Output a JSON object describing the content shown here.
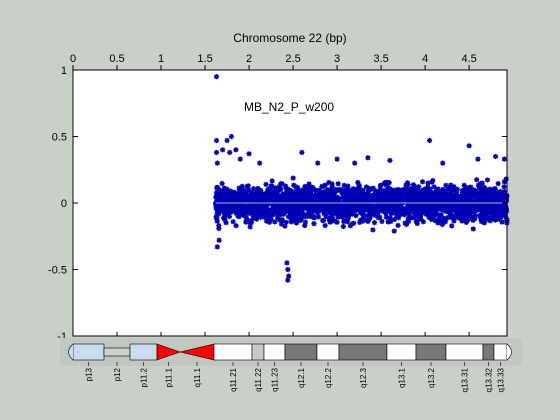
{
  "chart_data": {
    "type": "scatter",
    "title": "Chromosome 22 (bp)",
    "annotation": "MB_N2_P_w200",
    "x_exponent": "",
    "xlim": [
      0,
      4.93
    ],
    "ylim": [
      -1,
      1
    ],
    "xticks": [
      0,
      0.5,
      1,
      1.5,
      2,
      2.5,
      3,
      3.5,
      4,
      4.5
    ],
    "xtick_labels": [
      "0",
      "0.5",
      "1",
      "1.5",
      "2",
      "2.5",
      "3",
      "3.5",
      "4",
      "4.5"
    ],
    "yticks": [
      1,
      0.5,
      0,
      -0.5,
      -1
    ],
    "ytick_labels": [
      "1",
      "0.5",
      "0",
      "-0.5",
      "-1"
    ],
    "grid": false,
    "zero_line": 0,
    "colors": {
      "points": "#0000b4",
      "zero_line": "#a8b4c8",
      "figure_bg": "#c8d0c8",
      "axes_bg": "#ffffff"
    },
    "scatter_summary": {
      "x_start": 1.62,
      "x_end": 4.93,
      "typical_y_range": [
        -0.3,
        0.3
      ],
      "n_points_estimate": 2400
    },
    "series": [
      {
        "values": [
          [
            1.63,
            0.95
          ],
          [
            1.63,
            0.47
          ],
          [
            1.63,
            0.38
          ],
          [
            1.64,
            0.3
          ],
          [
            1.64,
            -0.33
          ],
          [
            1.66,
            -0.28
          ],
          [
            1.7,
            0.4
          ],
          [
            1.75,
            0.47
          ],
          [
            1.78,
            0.38
          ],
          [
            1.8,
            0.5
          ],
          [
            1.85,
            0.4
          ],
          [
            1.9,
            0.33
          ],
          [
            2.0,
            0.37
          ],
          [
            2.12,
            0.3
          ],
          [
            2.43,
            -0.45
          ],
          [
            2.44,
            -0.5
          ],
          [
            2.45,
            -0.55
          ],
          [
            2.44,
            -0.58
          ],
          [
            2.6,
            0.38
          ],
          [
            2.78,
            0.3
          ],
          [
            3.0,
            0.33
          ],
          [
            3.2,
            0.3
          ],
          [
            3.35,
            0.34
          ],
          [
            3.6,
            0.32
          ],
          [
            4.05,
            0.47
          ],
          [
            4.2,
            0.3
          ],
          [
            4.5,
            0.43
          ],
          [
            4.6,
            0.33
          ],
          [
            4.8,
            0.35
          ],
          [
            4.9,
            0.33
          ],
          [
            4.92,
            0.18
          ],
          [
            4.93,
            -0.13
          ]
        ]
      }
    ]
  },
  "ideogram": {
    "bands": [
      "p13",
      "p12",
      "p11.2",
      "p11.1",
      "q11.1",
      "q11.21",
      "q11.22",
      "q11.23",
      "q12.1",
      "q12.2",
      "q12.3",
      "q13.1",
      "q13.2",
      "q13.31",
      "q13.32",
      "q13.33"
    ],
    "colors": {
      "p_arm": "#c8dcf0",
      "stalk": "#d0d0d0",
      "centromere": "#ff0000",
      "gneg": "#ffffff",
      "gpos50": "#787878",
      "gpos25": "#c8c8c8"
    }
  }
}
